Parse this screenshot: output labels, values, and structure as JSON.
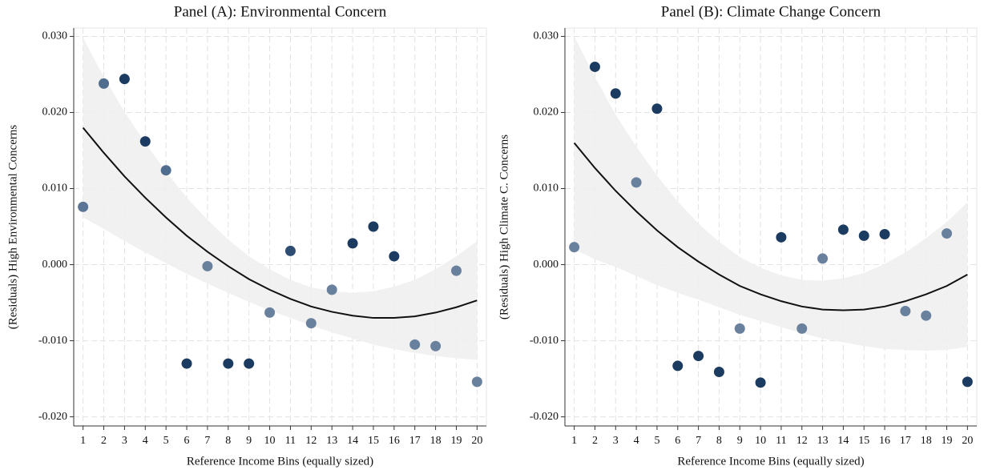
{
  "chart_data": [
    {
      "type": "scatter",
      "title": "Panel (A): Environmental Concern",
      "x_label": "Reference Income Bins (equally sized)",
      "y_label": "(Residuals) High Environmental Concerns",
      "x": [
        1,
        2,
        3,
        4,
        5,
        6,
        7,
        8,
        9,
        10,
        11,
        12,
        13,
        14,
        15,
        16,
        17,
        18,
        19,
        20
      ],
      "values": [
        0.0076,
        0.0238,
        0.0244,
        0.0162,
        0.0124,
        -0.013,
        -0.0002,
        -0.013,
        -0.013,
        -0.0063,
        0.0018,
        -0.0077,
        -0.0033,
        0.0028,
        0.005,
        0.0011,
        -0.0105,
        -0.0107,
        -0.0008,
        -0.0154
      ],
      "colors": [
        "#5a7595",
        "#4f6d8f",
        "#1c3b60",
        "#1c3b60",
        "#4f6d8f",
        "#1c3b60",
        "#6a819e",
        "#1c3b60",
        "#1c3b60",
        "#6a819e",
        "#2d4d73",
        "#6a819e",
        "#6a819e",
        "#1c3b60",
        "#1c3b60",
        "#1c3b60",
        "#6a819e",
        "#6a819e",
        "#6a819e",
        "#6a819e"
      ],
      "fit_values": [
        0.018,
        0.0147,
        0.0116,
        0.0088,
        0.0062,
        0.0038,
        0.0017,
        -0.0002,
        -0.0019,
        -0.0033,
        -0.0045,
        -0.0055,
        -0.0062,
        -0.0067,
        -0.007,
        -0.007,
        -0.0068,
        -0.0063,
        -0.0056,
        -0.0047
      ],
      "ci_upper": [
        0.0298,
        0.0247,
        0.0201,
        0.016,
        0.0122,
        0.0088,
        0.0059,
        0.0033,
        0.0011,
        -0.0006,
        -0.002,
        -0.003,
        -0.0035,
        -0.0037,
        -0.0035,
        -0.0029,
        -0.002,
        -0.0006,
        0.0011,
        0.0031
      ],
      "ci_lower": [
        0.0062,
        0.0047,
        0.0031,
        0.0016,
        0.0002,
        -0.0012,
        -0.0025,
        -0.0037,
        -0.0049,
        -0.006,
        -0.007,
        -0.008,
        -0.0089,
        -0.0097,
        -0.0105,
        -0.0111,
        -0.0116,
        -0.012,
        -0.0123,
        -0.0125
      ],
      "line_color": "#111111",
      "band_color": "#efefef",
      "xlim": [
        0.55,
        20.45
      ],
      "ylim": [
        -0.0212,
        0.0311
      ],
      "xticks": [
        1,
        2,
        3,
        4,
        5,
        6,
        7,
        8,
        9,
        10,
        11,
        12,
        13,
        14,
        15,
        16,
        17,
        18,
        19,
        20
      ],
      "yticks": [
        {
          "value": -0.02,
          "label": "-0.020"
        },
        {
          "value": -0.01,
          "label": "-0.010"
        },
        {
          "value": 0,
          "label": "0.000"
        },
        {
          "value": 0.01,
          "label": "0.010"
        },
        {
          "value": 0.02,
          "label": "0.020"
        },
        {
          "value": 0.03,
          "label": "0.030"
        }
      ],
      "grid": true
    },
    {
      "type": "scatter",
      "title": "Panel (B): Climate Change Concern",
      "x_label": "Reference Income Bins (equally sized)",
      "y_label": "(Residuals) High Climate C. Concerns",
      "x": [
        1,
        2,
        3,
        4,
        5,
        6,
        7,
        8,
        9,
        10,
        11,
        12,
        13,
        14,
        15,
        16,
        17,
        18,
        19,
        20
      ],
      "values": [
        0.0023,
        0.026,
        0.0225,
        0.0108,
        0.0205,
        -0.0133,
        -0.012,
        -0.0141,
        -0.0084,
        -0.0155,
        0.0036,
        -0.0084,
        0.0008,
        0.0046,
        0.0038,
        0.004,
        -0.0061,
        -0.0067,
        0.0041,
        -0.0154
      ],
      "colors": [
        "#6a819e",
        "#1c3b60",
        "#1c3b60",
        "#6a819e",
        "#1c3b60",
        "#1c3b60",
        "#1c3b60",
        "#1c3b60",
        "#6a819e",
        "#1c3b60",
        "#1c3b60",
        "#6a819e",
        "#6a819e",
        "#1c3b60",
        "#1c3b60",
        "#1c3b60",
        "#6a819e",
        "#6a819e",
        "#6a819e",
        "#1c3b60"
      ],
      "fit_values": [
        0.016,
        0.0127,
        0.0097,
        0.007,
        0.0045,
        0.0023,
        0.0004,
        -0.0013,
        -0.0028,
        -0.0039,
        -0.0048,
        -0.0055,
        -0.0059,
        -0.006,
        -0.0059,
        -0.0055,
        -0.0048,
        -0.0039,
        -0.0028,
        -0.0013
      ],
      "ci_upper": [
        0.03,
        0.0247,
        0.0197,
        0.0155,
        0.0117,
        0.0083,
        0.0054,
        0.003,
        0.001,
        -0.0004,
        -0.0014,
        -0.002,
        -0.0021,
        -0.0018,
        -0.0011,
        0.0001,
        0.0016,
        0.0035,
        0.0056,
        0.0082
      ],
      "ci_lower": [
        0.002,
        0.0007,
        -0.0003,
        -0.0015,
        -0.0027,
        -0.0037,
        -0.0046,
        -0.0056,
        -0.0066,
        -0.0074,
        -0.0082,
        -0.009,
        -0.0097,
        -0.0102,
        -0.0107,
        -0.0111,
        -0.0112,
        -0.0113,
        -0.0112,
        -0.0108
      ],
      "line_color": "#111111",
      "band_color": "#efefef",
      "xlim": [
        0.55,
        20.45
      ],
      "ylim": [
        -0.0212,
        0.0311
      ],
      "xticks": [
        1,
        2,
        3,
        4,
        5,
        6,
        7,
        8,
        9,
        10,
        11,
        12,
        13,
        14,
        15,
        16,
        17,
        18,
        19,
        20
      ],
      "yticks": [
        {
          "value": -0.02,
          "label": "-0.020"
        },
        {
          "value": -0.01,
          "label": "-0.010"
        },
        {
          "value": 0,
          "label": "0.000"
        },
        {
          "value": 0.01,
          "label": "0.010"
        },
        {
          "value": 0.02,
          "label": "0.020"
        },
        {
          "value": 0.03,
          "label": "0.030"
        }
      ],
      "grid": true
    }
  ]
}
